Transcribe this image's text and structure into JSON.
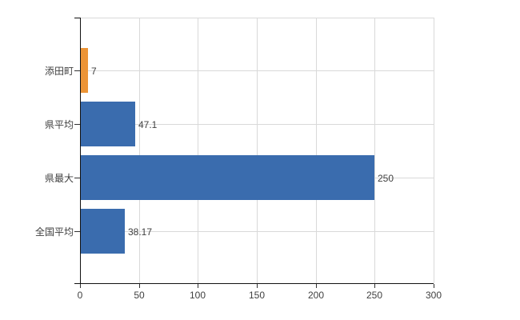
{
  "chart_data": {
    "type": "bar",
    "orientation": "horizontal",
    "title": "",
    "categories": [
      "添田町",
      "県平均",
      "県最大",
      "全国平均"
    ],
    "values": [
      7,
      47.1,
      250,
      38.17
    ],
    "value_labels": [
      "7",
      "47.1",
      "250",
      "38.17"
    ],
    "bar_colors": [
      "#EC9436",
      "#3A6CAE",
      "#3A6CAE",
      "#3A6CAE"
    ],
    "default_bar_color": "#3A6CAE",
    "highlight_bar_color": "#EC9436",
    "xlim": [
      0,
      300
    ],
    "x_ticks": [
      0,
      50,
      100,
      150,
      200,
      250,
      300
    ],
    "x_tick_labels": [
      "0",
      "50",
      "100",
      "150",
      "200",
      "250",
      "300"
    ],
    "grid": true,
    "legend": "none",
    "gridline_color": "#D9D9D9",
    "axis_color": "#111111",
    "tick_color": "#333333",
    "text_color": "#404040"
  }
}
